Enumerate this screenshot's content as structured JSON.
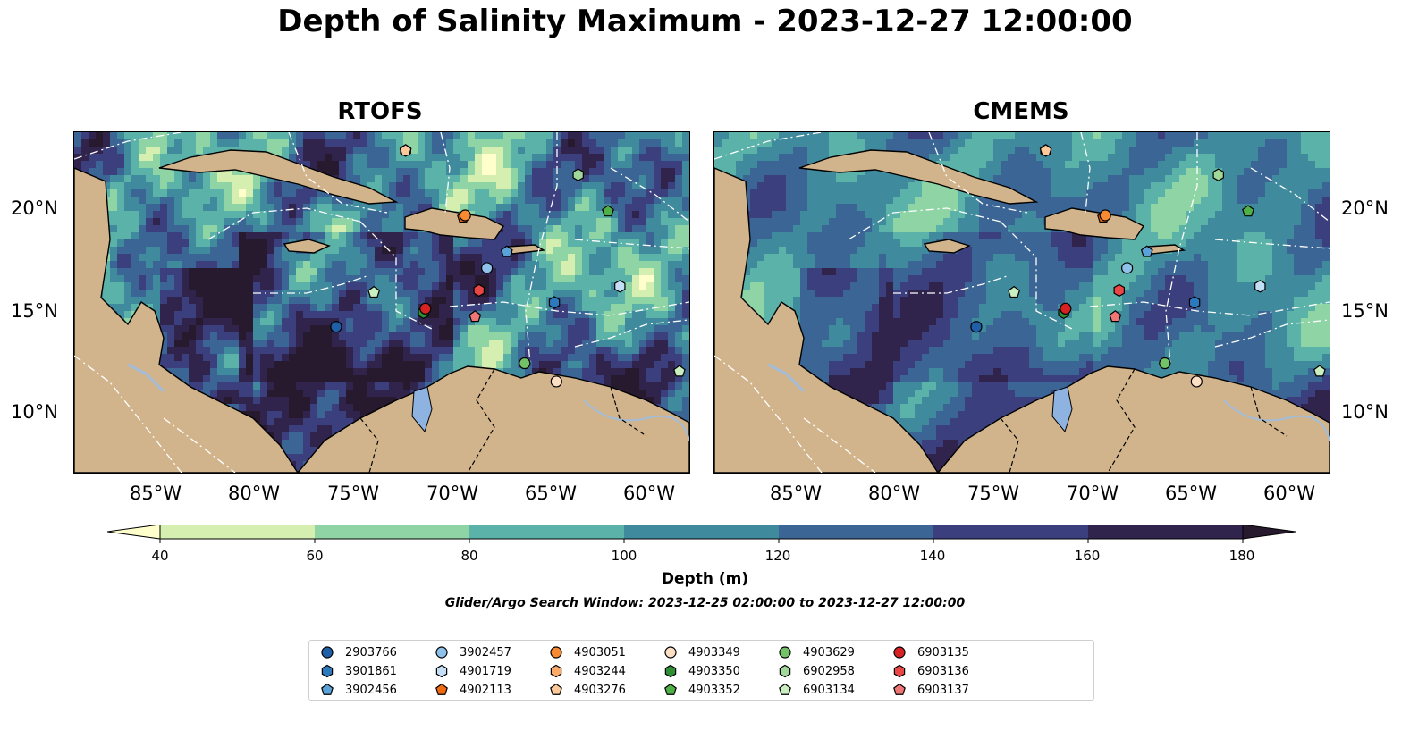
{
  "title": "Depth of Salinity Maximum - 2023-12-27 12:00:00",
  "panels": [
    {
      "title": "RTOFS"
    },
    {
      "title": "CMEMS"
    }
  ],
  "lat_ticks": [
    "20°N",
    "15°N",
    "10°N"
  ],
  "lon_ticks": [
    "85°W",
    "80°W",
    "75°W",
    "70°W",
    "65°W",
    "60°W"
  ],
  "colorbar": {
    "label": "Depth (m)",
    "ticks": [
      "40",
      "60",
      "80",
      "100",
      "120",
      "140",
      "160",
      "180"
    ],
    "colors": [
      "#ffffcc",
      "#d5efb1",
      "#8fd4a4",
      "#5ab2a8",
      "#3f8a9c",
      "#3a6595",
      "#3b3f7e",
      "#30244d",
      "#271a2e"
    ]
  },
  "search_window": "Glider/Argo Search Window: 2023-12-25 02:00:00 to 2023-12-27 12:00:00",
  "legend": [
    {
      "id": "2903766",
      "color": "#1f5fa8",
      "marker": "circle"
    },
    {
      "id": "3901861",
      "color": "#2d79bd",
      "marker": "hexagon"
    },
    {
      "id": "3902456",
      "color": "#5ba2d8",
      "marker": "pentagon"
    },
    {
      "id": "3902457",
      "color": "#8fc2ea",
      "marker": "circle"
    },
    {
      "id": "4901719",
      "color": "#c3def5",
      "marker": "hexagon"
    },
    {
      "id": "4902113",
      "color": "#f06a12",
      "marker": "pentagon"
    },
    {
      "id": "4903051",
      "color": "#f88b32",
      "marker": "circle"
    },
    {
      "id": "4903244",
      "color": "#fcaa66",
      "marker": "hexagon"
    },
    {
      "id": "4903276",
      "color": "#fdc99a",
      "marker": "pentagon"
    },
    {
      "id": "4903349",
      "color": "#fde0c4",
      "marker": "circle"
    },
    {
      "id": "4903350",
      "color": "#2e8f34",
      "marker": "hexagon"
    },
    {
      "id": "4903352",
      "color": "#4eb047",
      "marker": "pentagon"
    },
    {
      "id": "4903629",
      "color": "#73c267",
      "marker": "circle"
    },
    {
      "id": "6902958",
      "color": "#a1d99a",
      "marker": "hexagon"
    },
    {
      "id": "6903134",
      "color": "#c9eebf",
      "marker": "pentagon"
    },
    {
      "id": "6903135",
      "color": "#d62222",
      "marker": "circle"
    },
    {
      "id": "6903136",
      "color": "#e94646",
      "marker": "hexagon"
    },
    {
      "id": "6903137",
      "color": "#f07575",
      "marker": "pentagon"
    }
  ],
  "floats": [
    {
      "id": "2903766",
      "lon": -75.8,
      "lat": 14.2
    },
    {
      "id": "3901861",
      "lon": -64.8,
      "lat": 15.4
    },
    {
      "id": "3902456",
      "lon": -67.2,
      "lat": 17.9
    },
    {
      "id": "3902457",
      "lon": -68.2,
      "lat": 17.1
    },
    {
      "id": "4901719",
      "lon": -61.5,
      "lat": 16.2
    },
    {
      "id": "4902113",
      "lon": -69.4,
      "lat": 19.6
    },
    {
      "id": "4903051",
      "lon": -69.3,
      "lat": 19.7
    },
    {
      "id": "4903244",
      "lon": -72.3,
      "lat": 22.9
    },
    {
      "id": "4903276",
      "lon": -72.3,
      "lat": 22.9
    },
    {
      "id": "4903349",
      "lon": -64.7,
      "lat": 11.5
    },
    {
      "id": "4903350",
      "lon": -71.4,
      "lat": 14.9
    },
    {
      "id": "4903352",
      "lon": -62.1,
      "lat": 19.9
    },
    {
      "id": "4903629",
      "lon": -66.3,
      "lat": 12.4
    },
    {
      "id": "6902958",
      "lon": -63.6,
      "lat": 21.7
    },
    {
      "id": "6903134",
      "lon": -73.9,
      "lat": 15.9
    },
    {
      "id": "6903135",
      "lon": -71.3,
      "lat": 15.1
    },
    {
      "id": "6903136",
      "lon": -68.6,
      "lat": 16.0
    },
    {
      "id": "6903137",
      "lon": -68.8,
      "lat": 14.7
    },
    {
      "id": "6903134",
      "lon": -58.5,
      "lat": 12.0
    }
  ]
}
